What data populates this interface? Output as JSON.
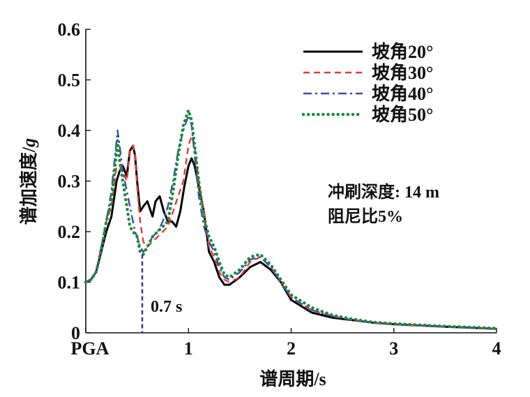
{
  "chart_data": {
    "type": "line",
    "xlabel": "谱周期/s",
    "ylabel_main": "谱加速度/",
    "ylabel_unit": "g",
    "xlim": [
      0,
      4
    ],
    "ylim": [
      0,
      0.6
    ],
    "x_ticks": [
      {
        "value": 0,
        "label": "PGA"
      },
      {
        "value": 1,
        "label": "1"
      },
      {
        "value": 2,
        "label": "2"
      },
      {
        "value": 3,
        "label": "3"
      },
      {
        "value": 4,
        "label": "4"
      }
    ],
    "y_ticks": [
      {
        "value": 0,
        "label": "0"
      },
      {
        "value": 0.1,
        "label": "0.1"
      },
      {
        "value": 0.2,
        "label": "0.2"
      },
      {
        "value": 0.3,
        "label": "0.3"
      },
      {
        "value": 0.4,
        "label": "0.4"
      },
      {
        "value": 0.5,
        "label": "0.5"
      },
      {
        "value": 0.6,
        "label": "0.6"
      }
    ],
    "grid": false,
    "legend_position": "top-right",
    "annotations": {
      "condition_line1": "冲刷深度: 14 m",
      "condition_line2": "阻尼比5%",
      "marker_label": "0.7 s",
      "marker_x": 0.55,
      "marker_y": 0.155
    },
    "series": [
      {
        "name": "坡角20°",
        "color": "#000000",
        "style": "solid",
        "x": [
          0,
          0.05,
          0.1,
          0.15,
          0.2,
          0.25,
          0.3,
          0.33,
          0.36,
          0.4,
          0.43,
          0.46,
          0.48,
          0.5,
          0.53,
          0.56,
          0.6,
          0.65,
          0.68,
          0.72,
          0.76,
          0.8,
          0.84,
          0.88,
          0.92,
          0.96,
          1.0,
          1.03,
          1.06,
          1.1,
          1.15,
          1.2,
          1.25,
          1.3,
          1.35,
          1.4,
          1.5,
          1.6,
          1.7,
          1.8,
          1.9,
          2.0,
          2.2,
          2.4,
          2.6,
          2.8,
          3.0,
          3.5,
          4.0
        ],
        "y": [
          0.1,
          0.105,
          0.12,
          0.16,
          0.2,
          0.23,
          0.3,
          0.32,
          0.33,
          0.31,
          0.36,
          0.37,
          0.35,
          0.3,
          0.24,
          0.25,
          0.26,
          0.23,
          0.26,
          0.27,
          0.24,
          0.22,
          0.22,
          0.21,
          0.24,
          0.29,
          0.33,
          0.345,
          0.33,
          0.29,
          0.24,
          0.16,
          0.14,
          0.11,
          0.095,
          0.095,
          0.11,
          0.13,
          0.14,
          0.125,
          0.1,
          0.065,
          0.04,
          0.03,
          0.025,
          0.02,
          0.017,
          0.012,
          0.008
        ]
      },
      {
        "name": "坡角30°",
        "color": "#e03c3c",
        "style": "dashed",
        "x": [
          0,
          0.05,
          0.1,
          0.15,
          0.2,
          0.25,
          0.3,
          0.33,
          0.36,
          0.4,
          0.43,
          0.46,
          0.48,
          0.5,
          0.53,
          0.56,
          0.6,
          0.65,
          0.7,
          0.75,
          0.8,
          0.85,
          0.9,
          0.95,
          1.0,
          1.03,
          1.06,
          1.1,
          1.15,
          1.2,
          1.25,
          1.3,
          1.35,
          1.4,
          1.5,
          1.6,
          1.7,
          1.8,
          1.9,
          2.0,
          2.2,
          2.4,
          2.6,
          2.8,
          3.0,
          3.5,
          4.0
        ],
        "y": [
          0.1,
          0.105,
          0.12,
          0.17,
          0.22,
          0.25,
          0.33,
          0.33,
          0.32,
          0.3,
          0.36,
          0.37,
          0.35,
          0.29,
          0.22,
          0.18,
          0.17,
          0.18,
          0.19,
          0.2,
          0.21,
          0.24,
          0.27,
          0.3,
          0.37,
          0.39,
          0.37,
          0.3,
          0.24,
          0.17,
          0.15,
          0.12,
          0.105,
          0.1,
          0.11,
          0.14,
          0.15,
          0.13,
          0.1,
          0.07,
          0.045,
          0.033,
          0.025,
          0.02,
          0.017,
          0.012,
          0.008
        ]
      },
      {
        "name": "坡角40°",
        "color": "#3a4ea8",
        "style": "dashdot",
        "x": [
          0,
          0.05,
          0.1,
          0.15,
          0.2,
          0.25,
          0.28,
          0.31,
          0.33,
          0.36,
          0.4,
          0.43,
          0.46,
          0.48,
          0.5,
          0.53,
          0.56,
          0.6,
          0.65,
          0.7,
          0.75,
          0.8,
          0.85,
          0.9,
          0.95,
          1.0,
          1.03,
          1.06,
          1.1,
          1.15,
          1.2,
          1.25,
          1.3,
          1.35,
          1.4,
          1.5,
          1.6,
          1.7,
          1.8,
          1.9,
          2.0,
          2.2,
          2.4,
          2.6,
          2.8,
          3.0,
          3.5,
          4.0
        ],
        "y": [
          0.1,
          0.105,
          0.12,
          0.17,
          0.22,
          0.28,
          0.34,
          0.4,
          0.37,
          0.32,
          0.28,
          0.25,
          0.22,
          0.2,
          0.19,
          0.17,
          0.16,
          0.17,
          0.19,
          0.2,
          0.22,
          0.25,
          0.3,
          0.36,
          0.4,
          0.43,
          0.41,
          0.35,
          0.27,
          0.21,
          0.18,
          0.16,
          0.13,
          0.11,
          0.105,
          0.12,
          0.145,
          0.15,
          0.13,
          0.1,
          0.07,
          0.045,
          0.033,
          0.025,
          0.02,
          0.017,
          0.012,
          0.008
        ]
      },
      {
        "name": "坡角50°",
        "color": "#1e8a3c",
        "style": "dotted",
        "x": [
          0,
          0.05,
          0.1,
          0.15,
          0.2,
          0.25,
          0.28,
          0.31,
          0.33,
          0.36,
          0.4,
          0.43,
          0.46,
          0.5,
          0.53,
          0.56,
          0.6,
          0.65,
          0.7,
          0.75,
          0.8,
          0.85,
          0.9,
          0.95,
          1.0,
          1.03,
          1.06,
          1.1,
          1.15,
          1.2,
          1.25,
          1.3,
          1.35,
          1.4,
          1.5,
          1.6,
          1.7,
          1.8,
          1.9,
          2.0,
          2.2,
          2.4,
          2.6,
          2.8,
          3.0,
          3.5,
          4.0
        ],
        "y": [
          0.1,
          0.105,
          0.12,
          0.16,
          0.22,
          0.26,
          0.32,
          0.38,
          0.34,
          0.3,
          0.25,
          0.21,
          0.2,
          0.19,
          0.16,
          0.155,
          0.17,
          0.19,
          0.2,
          0.21,
          0.22,
          0.28,
          0.35,
          0.41,
          0.44,
          0.42,
          0.37,
          0.3,
          0.23,
          0.19,
          0.17,
          0.14,
          0.115,
          0.11,
          0.125,
          0.15,
          0.155,
          0.135,
          0.105,
          0.075,
          0.05,
          0.035,
          0.027,
          0.021,
          0.018,
          0.013,
          0.009
        ]
      }
    ]
  }
}
